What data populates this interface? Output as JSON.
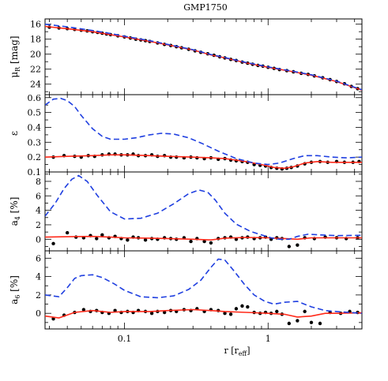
{
  "title": "GMP1750",
  "xlabel": "r [r",
  "xlabel_sub": "eff",
  "xlabel_close": "]",
  "colors": {
    "model_red": "#ff2a1a",
    "dashed_blue": "#1f3fe0",
    "points": "#000000",
    "axes": "#000000"
  },
  "chart_data": [
    {
      "type": "scatter",
      "panel": "mu",
      "ylabel": "μ",
      "ylabel_sub": "R",
      "ylabel_unit": " [mag]",
      "xscale": "log",
      "xlim": [
        0.028,
        4.5
      ],
      "ylim": [
        25.4,
        15.3
      ],
      "xticks": [
        0.1,
        1
      ],
      "yticks": [
        16,
        18,
        20,
        22,
        24
      ],
      "grid": false,
      "series": [
        {
          "kind": "points",
          "x": [
            0.03,
            0.035,
            0.04,
            0.045,
            0.05,
            0.055,
            0.06,
            0.065,
            0.07,
            0.075,
            0.08,
            0.09,
            0.1,
            0.11,
            0.12,
            0.13,
            0.14,
            0.15,
            0.17,
            0.19,
            0.21,
            0.23,
            0.25,
            0.28,
            0.31,
            0.34,
            0.38,
            0.42,
            0.46,
            0.5,
            0.55,
            0.6,
            0.66,
            0.72,
            0.78,
            0.85,
            0.92,
            1.0,
            1.1,
            1.2,
            1.35,
            1.5,
            1.7,
            1.9,
            2.1,
            2.4,
            2.7,
            3.0,
            3.4,
            3.8,
            4.2
          ],
          "y": [
            16.4,
            16.5,
            16.6,
            16.7,
            16.8,
            16.9,
            17.0,
            17.1,
            17.2,
            17.3,
            17.4,
            17.55,
            17.7,
            17.85,
            18.0,
            18.1,
            18.2,
            18.3,
            18.5,
            18.7,
            18.85,
            19.0,
            19.15,
            19.35,
            19.55,
            19.75,
            19.95,
            20.15,
            20.35,
            20.5,
            20.7,
            20.85,
            21.05,
            21.2,
            21.35,
            21.5,
            21.6,
            21.75,
            21.9,
            22.05,
            22.2,
            22.35,
            22.55,
            22.7,
            22.9,
            23.15,
            23.4,
            23.65,
            23.95,
            24.3,
            24.6
          ]
        },
        {
          "kind": "red_solid",
          "x": [
            0.028,
            0.04,
            0.06,
            0.08,
            0.1,
            0.15,
            0.2,
            0.3,
            0.4,
            0.5,
            0.7,
            1.0,
            1.5,
            2.0,
            3.0,
            4.5
          ],
          "y": [
            16.3,
            16.6,
            17.0,
            17.4,
            17.7,
            18.3,
            18.75,
            19.45,
            20.1,
            20.5,
            21.15,
            21.75,
            22.35,
            22.8,
            23.65,
            24.8
          ]
        },
        {
          "kind": "blue_dashed",
          "x": [
            0.028,
            0.04,
            0.06,
            0.08,
            0.1,
            0.15,
            0.2,
            0.3,
            0.4,
            0.5,
            0.7,
            1.0,
            1.5,
            2.0,
            3.0,
            4.5
          ],
          "y": [
            16.0,
            16.35,
            16.85,
            17.25,
            17.6,
            18.2,
            18.7,
            19.4,
            20.05,
            20.45,
            21.1,
            21.7,
            22.3,
            22.75,
            23.6,
            24.75
          ]
        }
      ]
    },
    {
      "type": "scatter",
      "panel": "epsilon",
      "ylabel": "ε",
      "xscale": "log",
      "xlim": [
        0.028,
        4.5
      ],
      "ylim": [
        0.1,
        0.62
      ],
      "xticks": [
        0.1,
        1
      ],
      "yticks": [
        0.1,
        0.2,
        0.3,
        0.4,
        0.5,
        0.6
      ],
      "grid": false,
      "series": [
        {
          "kind": "points",
          "x": [
            0.032,
            0.038,
            0.045,
            0.05,
            0.056,
            0.062,
            0.07,
            0.078,
            0.086,
            0.095,
            0.105,
            0.115,
            0.125,
            0.14,
            0.155,
            0.17,
            0.19,
            0.21,
            0.23,
            0.26,
            0.29,
            0.32,
            0.36,
            0.4,
            0.45,
            0.5,
            0.55,
            0.6,
            0.66,
            0.72,
            0.8,
            0.88,
            0.96,
            1.05,
            1.15,
            1.25,
            1.35,
            1.45,
            1.6,
            1.8,
            2.0,
            2.3,
            2.6,
            3.0,
            3.4,
            3.9,
            4.3
          ],
          "y": [
            0.2,
            0.21,
            0.205,
            0.2,
            0.21,
            0.205,
            0.215,
            0.22,
            0.22,
            0.215,
            0.215,
            0.22,
            0.21,
            0.21,
            0.215,
            0.205,
            0.21,
            0.2,
            0.2,
            0.195,
            0.2,
            0.195,
            0.19,
            0.195,
            0.185,
            0.19,
            0.18,
            0.175,
            0.17,
            0.165,
            0.15,
            0.145,
            0.14,
            0.13,
            0.125,
            0.12,
            0.125,
            0.13,
            0.14,
            0.155,
            0.165,
            0.17,
            0.165,
            0.17,
            0.165,
            0.165,
            0.17
          ]
        },
        {
          "kind": "red_solid",
          "x": [
            0.028,
            0.04,
            0.06,
            0.08,
            0.1,
            0.15,
            0.2,
            0.3,
            0.4,
            0.5,
            0.7,
            0.9,
            1.1,
            1.3,
            1.5,
            1.8,
            2.2,
            2.8,
            3.5,
            4.5
          ],
          "y": [
            0.2,
            0.205,
            0.21,
            0.215,
            0.215,
            0.21,
            0.205,
            0.2,
            0.195,
            0.19,
            0.17,
            0.15,
            0.13,
            0.125,
            0.135,
            0.16,
            0.17,
            0.165,
            0.165,
            0.165
          ]
        },
        {
          "kind": "blue_dashed",
          "x": [
            0.028,
            0.032,
            0.036,
            0.04,
            0.045,
            0.05,
            0.06,
            0.07,
            0.08,
            0.1,
            0.12,
            0.15,
            0.18,
            0.22,
            0.28,
            0.35,
            0.45,
            0.6,
            0.8,
            1.0,
            1.2,
            1.5,
            1.8,
            2.2,
            2.8,
            3.5,
            4.5
          ],
          "y": [
            0.55,
            0.59,
            0.595,
            0.58,
            0.54,
            0.48,
            0.39,
            0.34,
            0.32,
            0.32,
            0.33,
            0.35,
            0.36,
            0.355,
            0.33,
            0.29,
            0.24,
            0.19,
            0.16,
            0.15,
            0.16,
            0.19,
            0.21,
            0.21,
            0.2,
            0.195,
            0.2
          ]
        }
      ]
    },
    {
      "type": "scatter",
      "panel": "a4",
      "ylabel": "a",
      "ylabel_sub": "4",
      "ylabel_unit": " [%]",
      "xscale": "log",
      "xlim": [
        0.028,
        4.5
      ],
      "ylim": [
        -1.6,
        9.3
      ],
      "xticks": [
        0.1,
        1
      ],
      "yticks": [
        0,
        2,
        4,
        6,
        8
      ],
      "grid": false,
      "series": [
        {
          "kind": "points",
          "x": [
            0.032,
            0.04,
            0.046,
            0.052,
            0.058,
            0.064,
            0.07,
            0.078,
            0.086,
            0.095,
            0.105,
            0.115,
            0.125,
            0.14,
            0.155,
            0.17,
            0.19,
            0.21,
            0.23,
            0.26,
            0.29,
            0.32,
            0.36,
            0.4,
            0.45,
            0.5,
            0.55,
            0.6,
            0.66,
            0.72,
            0.8,
            0.88,
            0.96,
            1.05,
            1.15,
            1.25,
            1.4,
            1.6,
            1.8,
            2.1,
            2.5,
            3.0,
            3.5,
            4.2
          ],
          "y": [
            -0.6,
            0.9,
            0.3,
            0.2,
            0.5,
            0.1,
            0.6,
            0.2,
            0.4,
            0.1,
            -0.1,
            0.3,
            0.2,
            -0.1,
            0.1,
            0.0,
            0.2,
            0.1,
            0.0,
            0.2,
            -0.3,
            0.1,
            -0.3,
            -0.5,
            0.1,
            0.2,
            0.3,
            0.0,
            0.2,
            0.3,
            0.1,
            0.2,
            0.3,
            0.0,
            0.2,
            0.1,
            -1.0,
            -0.8,
            0.2,
            0.1,
            0.3,
            0.2,
            0.1,
            0.2
          ]
        },
        {
          "kind": "red_solid",
          "x": [
            0.028,
            0.04,
            0.06,
            0.08,
            0.1,
            0.15,
            0.2,
            0.3,
            0.4,
            0.5,
            0.7,
            1.0,
            1.3,
            1.6,
            2.0,
            3.0,
            4.5
          ],
          "y": [
            0.3,
            0.35,
            0.4,
            0.3,
            0.2,
            0.15,
            0.1,
            0.0,
            -0.1,
            0.15,
            0.25,
            0.2,
            0.1,
            0.0,
            0.2,
            0.2,
            0.2
          ]
        },
        {
          "kind": "blue_dashed",
          "x": [
            0.028,
            0.033,
            0.038,
            0.043,
            0.048,
            0.055,
            0.065,
            0.08,
            0.1,
            0.13,
            0.17,
            0.22,
            0.28,
            0.33,
            0.38,
            0.43,
            0.5,
            0.6,
            0.75,
            0.9,
            1.05,
            1.2,
            1.4,
            1.6,
            1.9,
            2.3,
            3.0,
            4.5
          ],
          "y": [
            3.2,
            5.0,
            7.0,
            8.3,
            8.8,
            8.0,
            6.0,
            3.8,
            2.8,
            2.9,
            3.6,
            4.9,
            6.3,
            6.8,
            6.5,
            5.4,
            3.6,
            2.1,
            1.1,
            0.6,
            0.2,
            0.0,
            0.0,
            0.4,
            0.7,
            0.6,
            0.5,
            0.55
          ]
        }
      ]
    },
    {
      "type": "scatter",
      "panel": "a6",
      "ylabel": "a",
      "ylabel_sub": "6",
      "ylabel_unit": " [%]",
      "xscale": "log",
      "xlim": [
        0.028,
        4.5
      ],
      "ylim": [
        -1.7,
        6.8
      ],
      "xticks": [
        0.1,
        1
      ],
      "yticks": [
        0,
        2,
        4,
        6
      ],
      "grid": false,
      "series": [
        {
          "kind": "points",
          "x": [
            0.032,
            0.038,
            0.045,
            0.052,
            0.058,
            0.064,
            0.07,
            0.078,
            0.086,
            0.095,
            0.105,
            0.115,
            0.125,
            0.14,
            0.155,
            0.17,
            0.19,
            0.21,
            0.23,
            0.26,
            0.29,
            0.32,
            0.36,
            0.4,
            0.45,
            0.5,
            0.55,
            0.6,
            0.66,
            0.72,
            0.8,
            0.88,
            0.96,
            1.05,
            1.15,
            1.25,
            1.4,
            1.6,
            1.8,
            2.0,
            2.3,
            2.7,
            3.2,
            3.7,
            4.2
          ],
          "y": [
            -0.6,
            -0.2,
            0.1,
            0.4,
            0.2,
            0.3,
            0.1,
            0.0,
            0.3,
            0.1,
            0.2,
            0.1,
            0.3,
            0.2,
            0.0,
            0.2,
            0.1,
            0.3,
            0.2,
            0.4,
            0.3,
            0.5,
            0.2,
            0.4,
            0.3,
            0.0,
            -0.1,
            0.5,
            0.8,
            0.7,
            0.1,
            0.0,
            0.1,
            0.0,
            0.2,
            -0.1,
            -1.1,
            -0.8,
            0.2,
            -1.0,
            -1.1,
            0.1,
            0.0,
            0.2,
            0.1
          ]
        },
        {
          "kind": "red_solid",
          "x": [
            0.028,
            0.035,
            0.045,
            0.06,
            0.08,
            0.1,
            0.15,
            0.2,
            0.3,
            0.4,
            0.5,
            0.7,
            1.0,
            1.3,
            1.6,
            2.0,
            2.5,
            3.0,
            4.5
          ],
          "y": [
            -0.3,
            -0.5,
            0.1,
            0.3,
            0.1,
            0.2,
            0.2,
            0.3,
            0.4,
            0.3,
            0.2,
            0.1,
            0.0,
            -0.1,
            -0.4,
            -0.3,
            0.0,
            0.0,
            0.05
          ]
        },
        {
          "kind": "blue_dashed",
          "x": [
            0.028,
            0.035,
            0.04,
            0.045,
            0.05,
            0.06,
            0.07,
            0.085,
            0.1,
            0.13,
            0.17,
            0.22,
            0.28,
            0.34,
            0.4,
            0.45,
            0.5,
            0.58,
            0.68,
            0.8,
            0.95,
            1.1,
            1.3,
            1.6,
            2.0,
            2.5,
            3.0,
            4.5
          ],
          "y": [
            2.0,
            1.8,
            2.8,
            3.8,
            4.1,
            4.2,
            3.9,
            3.2,
            2.5,
            1.8,
            1.7,
            1.9,
            2.6,
            3.6,
            5.0,
            5.9,
            5.8,
            4.6,
            3.2,
            2.0,
            1.3,
            1.0,
            1.2,
            1.3,
            0.7,
            0.3,
            0.2,
            0.0
          ]
        }
      ]
    }
  ]
}
